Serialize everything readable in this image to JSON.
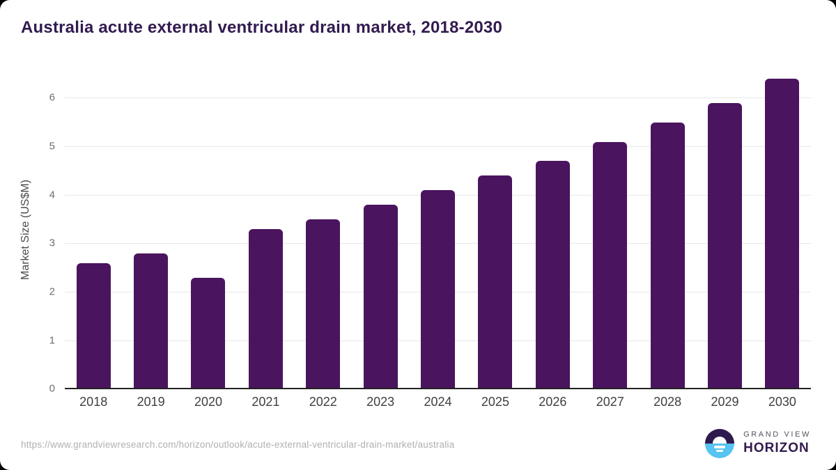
{
  "title": "Australia acute external ventricular drain market, 2018-2030",
  "chart_data": {
    "type": "bar",
    "categories": [
      "2018",
      "2019",
      "2020",
      "2021",
      "2022",
      "2023",
      "2024",
      "2025",
      "2026",
      "2027",
      "2028",
      "2029",
      "2030"
    ],
    "values": [
      2.6,
      2.8,
      2.3,
      3.3,
      3.5,
      3.8,
      4.1,
      4.4,
      4.7,
      5.1,
      5.5,
      5.9,
      6.4
    ],
    "title": "Australia acute external ventricular drain market, 2018-2030",
    "xlabel": "",
    "ylabel": "Market Size (US$M)",
    "ylim": [
      0,
      6.6
    ],
    "yticks": [
      0,
      1,
      2,
      3,
      4,
      5,
      6
    ],
    "grid": "horizontal",
    "legend": "none",
    "bar_color": "#4a145e"
  },
  "colors": {
    "title_text": "#321b4f",
    "bar": "#4a145e",
    "axis_line": "#222222",
    "gridline": "#e7e7e7",
    "y_tick_label": "#6e6e6e",
    "x_tick_label": "#3f3f3f",
    "footer_url": "#b0b0b0",
    "logo_purple": "#2e1a4d",
    "logo_blue": "#56c3f0",
    "card_background": "#ffffff",
    "frame_background": "#000000"
  },
  "footer": {
    "url": "https://www.grandviewresearch.com/horizon/outlook/acute-external-ventricular-drain-market/australia",
    "logo": {
      "line1": "GRAND VIEW",
      "line2": "HORIZON"
    }
  }
}
